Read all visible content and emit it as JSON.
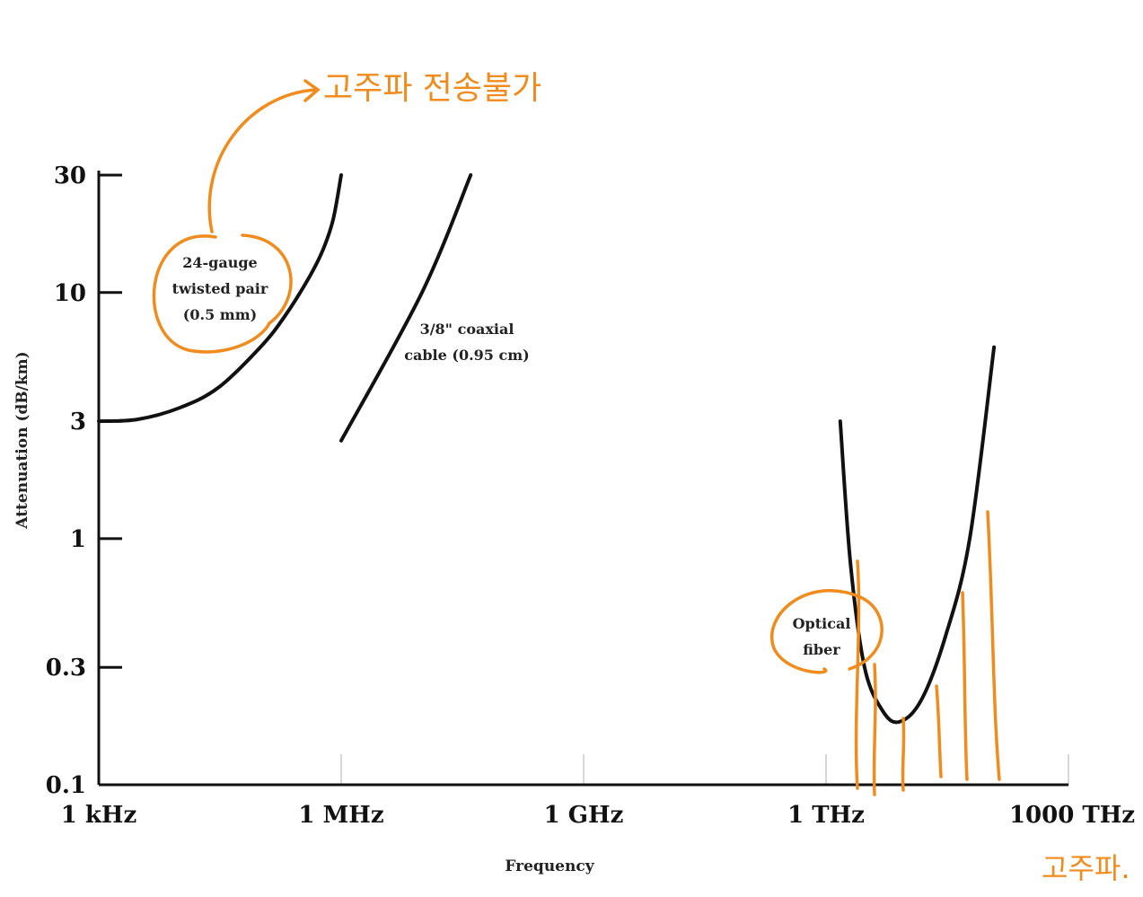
{
  "chart_data": {
    "type": "line",
    "xlabel": "Frequency",
    "ylabel": "Attenuation (dB/km)",
    "x_scale": "log",
    "y_scale": "log",
    "x_ticks": [
      {
        "value": 1000.0,
        "label": "1 kHz"
      },
      {
        "value": 1000000.0,
        "label": "1 MHz"
      },
      {
        "value": 1000000000.0,
        "label": "1 GHz"
      },
      {
        "value": 1000000000000.0,
        "label": "1 THz"
      },
      {
        "value": 1000000000000000.0,
        "label": "1000 THz"
      }
    ],
    "y_ticks": [
      {
        "value": 0.1,
        "label": "0.1"
      },
      {
        "value": 0.3,
        "label": "0.3"
      },
      {
        "value": 1,
        "label": "1"
      },
      {
        "value": 3,
        "label": "3"
      },
      {
        "value": 10,
        "label": "10"
      },
      {
        "value": 30,
        "label": "30"
      }
    ],
    "xlim": [
      1000.0,
      1000000000000000.0
    ],
    "ylim": [
      0.1,
      30
    ],
    "grid": "vertical",
    "series": [
      {
        "name": "24-gauge twisted pair (0.5 mm)",
        "label_lines": [
          "24-gauge",
          "twisted pair",
          "(0.5 mm)"
        ],
        "x": [
          1000.0,
          3000.0,
          10000.0,
          30000.0,
          100000.0,
          200000.0,
          400000.0,
          600000.0,
          800000.0,
          1000000.0
        ],
        "y": [
          3,
          3.05,
          3.4,
          4.1,
          6.0,
          8.0,
          11.5,
          15,
          20,
          30
        ]
      },
      {
        "name": "3/8\" coaxial cable (0.95 cm)",
        "label_lines": [
          "3/8\" coaxial",
          "cable (0.95 cm)"
        ],
        "x": [
          1000000.0,
          10000000.0,
          40000000.0
        ],
        "y": [
          2.5,
          10,
          30
        ]
      },
      {
        "name": "Optical fiber",
        "label_lines": [
          "Optical",
          "fiber"
        ],
        "x": [
          1500000000000.0,
          2000000000000.0,
          3000000000000.0,
          5000000000000.0,
          8000000000000.0,
          15000000000000.0,
          30000000000000.0,
          60000000000000.0,
          120000000000000.0
        ],
        "y": [
          3,
          0.8,
          0.3,
          0.2,
          0.18,
          0.22,
          0.4,
          1.0,
          6
        ]
      }
    ]
  },
  "annotations": {
    "top_note": "고주파 전송불가",
    "corner_note": "고주파."
  },
  "colors": {
    "curve": "#111111",
    "annotation": "#f08c1e",
    "grid": "#d8d8d8"
  }
}
